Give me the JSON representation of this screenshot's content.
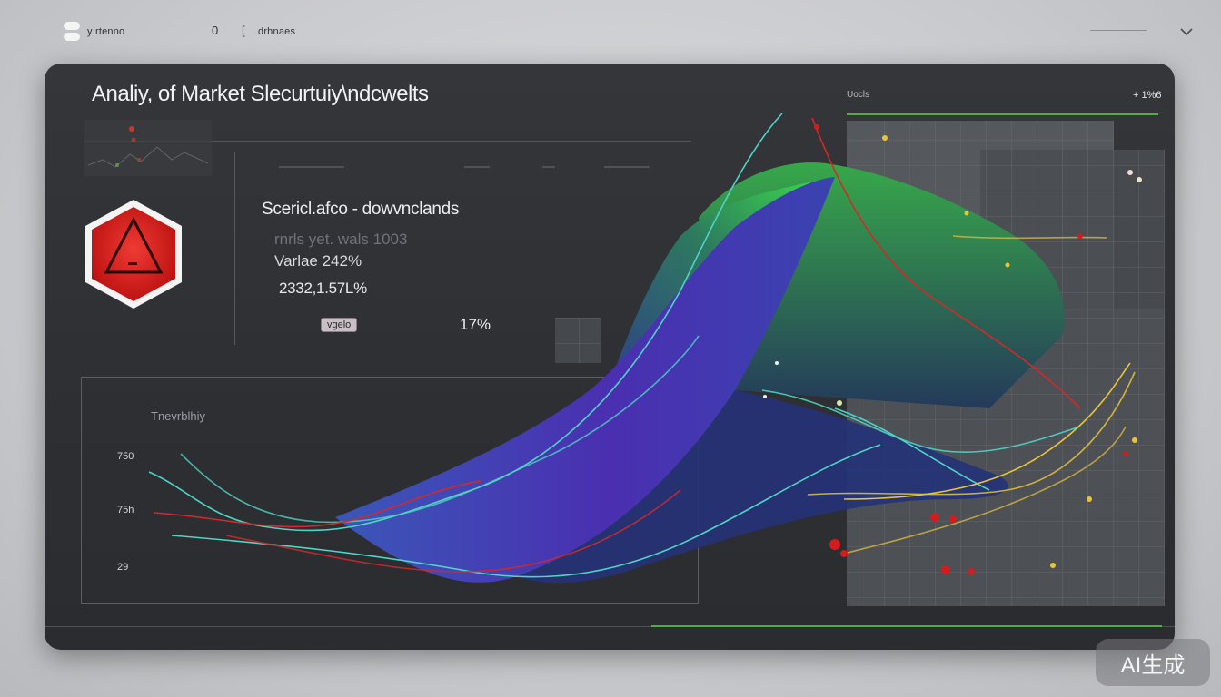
{
  "topbar": {
    "left_text": "y rtenno",
    "mid_mark_1": "0",
    "mid_mark_2": "[",
    "mid_text": "drhnaes"
  },
  "panel": {
    "title": "Analiy, of Market Slecurtuiy\\ndcwelts",
    "stats": {
      "heading": "Scericl.afco - dowvnclands",
      "sub": "rnrls yet. wals 1003",
      "variance": "Varlae 242%",
      "number": "2332,1.57L%",
      "badge": "vgelo",
      "percent": "17%"
    },
    "lower_chart": {
      "label": "Tnevrblhiy",
      "ticks": [
        "750",
        "75h",
        "29"
      ]
    },
    "right": {
      "label": "Uocls",
      "value": "+ 1%6"
    }
  },
  "colors": {
    "panel": "#2d2f33",
    "accent_green": "#4fae3b",
    "warning_red": "#e11e1e",
    "wave_blue": "#3a3fae",
    "wave_green": "#3fd14b",
    "teal_line": "#4fd3c4",
    "yellow_line": "#e8c43a"
  },
  "icons": {
    "logo": "logo-dots-icon",
    "chevron": "chevron-down-icon",
    "warning": "warning-hexagon-icon"
  },
  "watermark": "AI生成"
}
